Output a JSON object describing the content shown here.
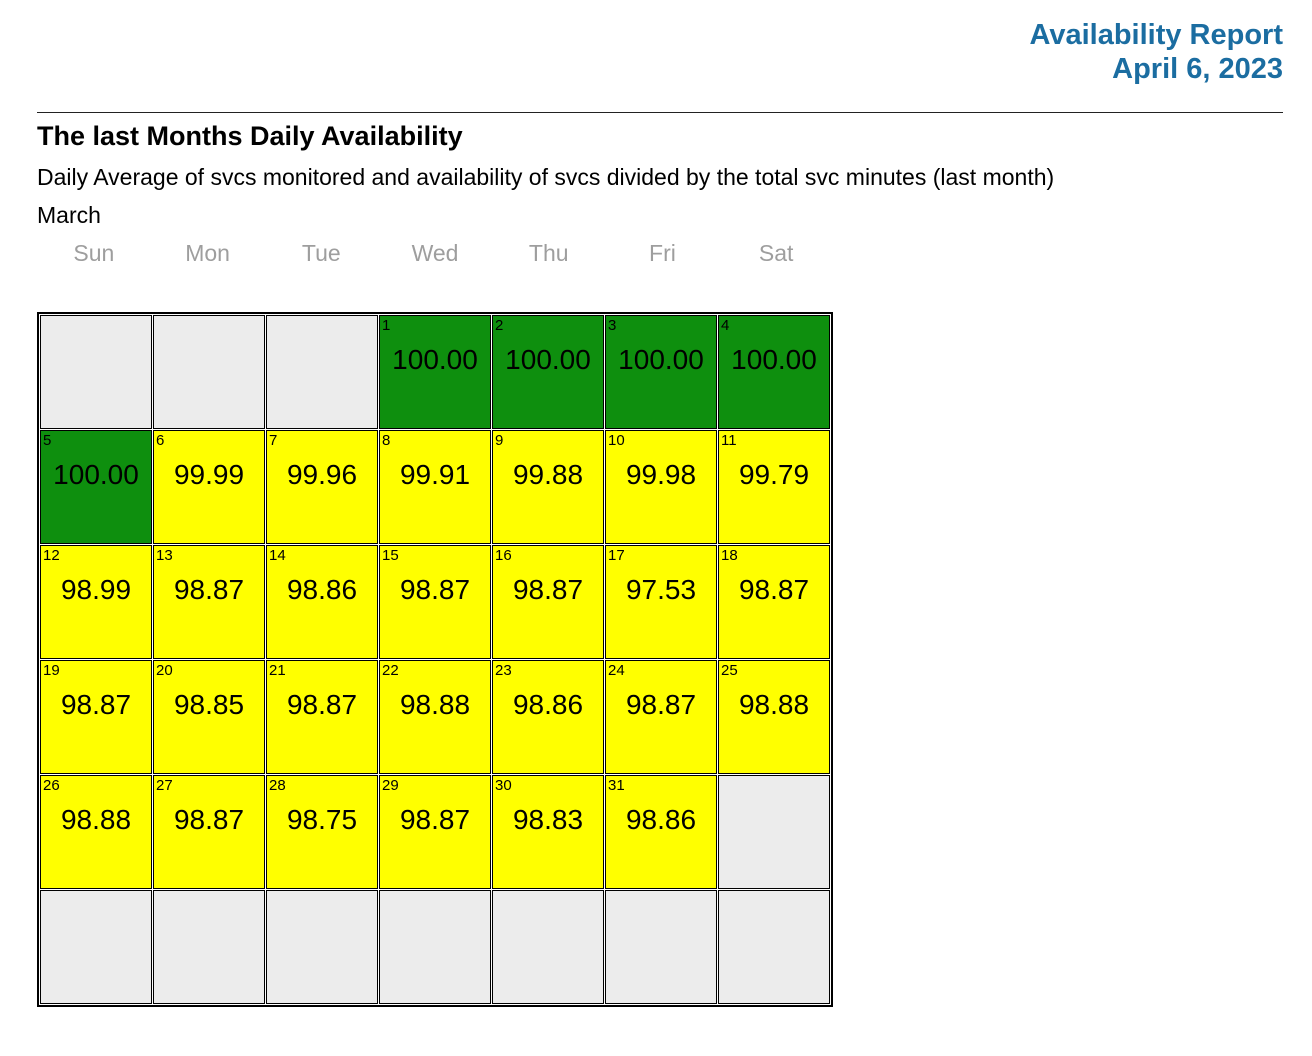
{
  "report": {
    "title": "Availability Report",
    "date": "April 6, 2023"
  },
  "section": {
    "heading": "The last Months Daily Availability",
    "description": "Daily Average of svcs monitored and availability of svcs divided by the total svc minutes (last month)",
    "month": "March"
  },
  "colors": {
    "header_blue": "#1b6da1",
    "weekday_gray": "#9e9e9e",
    "green": "#0e8f0e",
    "yellow": "#ffff00",
    "empty": "#ececec",
    "border": "#000000"
  },
  "calendar": {
    "weekdays": [
      "Sun",
      "Mon",
      "Tue",
      "Wed",
      "Thu",
      "Fri",
      "Sat"
    ],
    "weeks": [
      [
        null,
        null,
        null,
        {
          "day": "1",
          "value": "100.00",
          "status": "green"
        },
        {
          "day": "2",
          "value": "100.00",
          "status": "green"
        },
        {
          "day": "3",
          "value": "100.00",
          "status": "green"
        },
        {
          "day": "4",
          "value": "100.00",
          "status": "green"
        }
      ],
      [
        {
          "day": "5",
          "value": "100.00",
          "status": "green"
        },
        {
          "day": "6",
          "value": "99.99",
          "status": "yellow"
        },
        {
          "day": "7",
          "value": "99.96",
          "status": "yellow"
        },
        {
          "day": "8",
          "value": "99.91",
          "status": "yellow"
        },
        {
          "day": "9",
          "value": "99.88",
          "status": "yellow"
        },
        {
          "day": "10",
          "value": "99.98",
          "status": "yellow"
        },
        {
          "day": "11",
          "value": "99.79",
          "status": "yellow"
        }
      ],
      [
        {
          "day": "12",
          "value": "98.99",
          "status": "yellow"
        },
        {
          "day": "13",
          "value": "98.87",
          "status": "yellow"
        },
        {
          "day": "14",
          "value": "98.86",
          "status": "yellow"
        },
        {
          "day": "15",
          "value": "98.87",
          "status": "yellow"
        },
        {
          "day": "16",
          "value": "98.87",
          "status": "yellow"
        },
        {
          "day": "17",
          "value": "97.53",
          "status": "yellow"
        },
        {
          "day": "18",
          "value": "98.87",
          "status": "yellow"
        }
      ],
      [
        {
          "day": "19",
          "value": "98.87",
          "status": "yellow"
        },
        {
          "day": "20",
          "value": "98.85",
          "status": "yellow"
        },
        {
          "day": "21",
          "value": "98.87",
          "status": "yellow"
        },
        {
          "day": "22",
          "value": "98.88",
          "status": "yellow"
        },
        {
          "day": "23",
          "value": "98.86",
          "status": "yellow"
        },
        {
          "day": "24",
          "value": "98.87",
          "status": "yellow"
        },
        {
          "day": "25",
          "value": "98.88",
          "status": "yellow"
        }
      ],
      [
        {
          "day": "26",
          "value": "98.88",
          "status": "yellow"
        },
        {
          "day": "27",
          "value": "98.87",
          "status": "yellow"
        },
        {
          "day": "28",
          "value": "98.75",
          "status": "yellow"
        },
        {
          "day": "29",
          "value": "98.87",
          "status": "yellow"
        },
        {
          "day": "30",
          "value": "98.83",
          "status": "yellow"
        },
        {
          "day": "31",
          "value": "98.86",
          "status": "yellow"
        },
        null
      ],
      [
        null,
        null,
        null,
        null,
        null,
        null,
        null
      ]
    ]
  }
}
